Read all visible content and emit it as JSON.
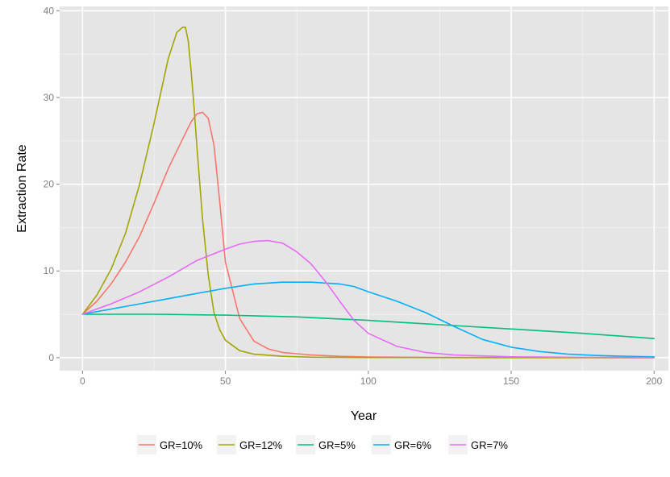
{
  "chart_data": {
    "type": "line",
    "title": "",
    "xlabel": "Year",
    "ylabel": "Extraction Rate",
    "xlim": [
      -8,
      205
    ],
    "ylim": [
      -1.5,
      40.5
    ],
    "xticks": [
      0,
      50,
      100,
      150,
      200
    ],
    "xtick_labels": [
      "0",
      "50",
      "100",
      "150",
      "200"
    ],
    "yticks": [
      0,
      10,
      20,
      30,
      40
    ],
    "ytick_labels": [
      "0",
      "10",
      "20",
      "30",
      "40"
    ],
    "grid": true,
    "legend_position": "bottom",
    "series": [
      {
        "name": "GR=10%",
        "color": "#f8766d",
        "x": [
          0,
          5,
          10,
          15,
          20,
          25,
          30,
          35,
          38,
          40,
          42,
          44,
          46,
          48,
          50,
          55,
          60,
          65,
          70,
          80,
          90,
          100,
          120,
          150,
          200
        ],
        "y": [
          5,
          6.5,
          8.5,
          11,
          14,
          17.8,
          21.8,
          25.2,
          27.2,
          28.1,
          28.3,
          27.6,
          24.5,
          18,
          11,
          4.5,
          1.9,
          1.0,
          0.6,
          0.3,
          0.15,
          0.08,
          0.03,
          0.01,
          0
        ]
      },
      {
        "name": "GR=12%",
        "color": "#a3a500",
        "x": [
          0,
          5,
          10,
          15,
          20,
          25,
          30,
          33,
          35,
          36,
          37,
          38,
          39,
          40,
          42,
          44,
          46,
          48,
          50,
          55,
          60,
          70,
          80,
          100,
          150,
          200
        ],
        "y": [
          5,
          7.2,
          10.2,
          14.3,
          20,
          27,
          34.5,
          37.5,
          38.1,
          38.1,
          36.5,
          33,
          29,
          24.5,
          16,
          9.5,
          5.2,
          3.2,
          2.0,
          0.8,
          0.4,
          0.15,
          0.05,
          0.01,
          0,
          0
        ]
      },
      {
        "name": "GR=5%",
        "color": "#00bf7d",
        "x": [
          0,
          25,
          50,
          75,
          100,
          125,
          150,
          175,
          200
        ],
        "y": [
          5.0,
          5.0,
          4.9,
          4.7,
          4.3,
          3.8,
          3.3,
          2.8,
          2.2
        ]
      },
      {
        "name": "GR=6%",
        "color": "#00b0f6",
        "x": [
          0,
          10,
          20,
          30,
          40,
          50,
          60,
          70,
          75,
          80,
          90,
          95,
          100,
          110,
          120,
          130,
          140,
          150,
          160,
          170,
          180,
          190,
          200
        ],
        "y": [
          5,
          5.6,
          6.2,
          6.8,
          7.4,
          8.0,
          8.5,
          8.7,
          8.7,
          8.7,
          8.5,
          8.2,
          7.6,
          6.5,
          5.2,
          3.6,
          2.1,
          1.2,
          0.7,
          0.4,
          0.25,
          0.15,
          0.1
        ]
      },
      {
        "name": "GR=7%",
        "color": "#e76bf3",
        "x": [
          0,
          10,
          20,
          30,
          40,
          50,
          55,
          60,
          65,
          70,
          75,
          80,
          85,
          90,
          95,
          100,
          110,
          120,
          130,
          150,
          175,
          200
        ],
        "y": [
          5,
          6.2,
          7.6,
          9.3,
          11.2,
          12.5,
          13.1,
          13.4,
          13.5,
          13.2,
          12.2,
          10.8,
          8.8,
          6.5,
          4.3,
          2.8,
          1.3,
          0.6,
          0.3,
          0.1,
          0.03,
          0.01
        ]
      }
    ]
  }
}
